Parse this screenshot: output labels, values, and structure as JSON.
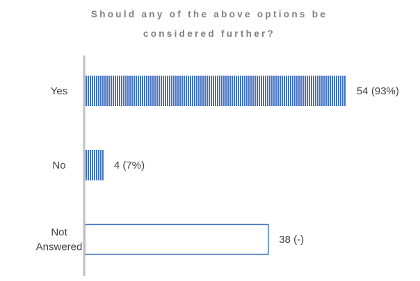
{
  "chart_data": {
    "type": "bar",
    "orientation": "horizontal",
    "title_lines": [
      "Should any of the above options be",
      "considered further?"
    ],
    "categories": [
      {
        "label_lines": [
          "Yes"
        ]
      },
      {
        "label_lines": [
          "No"
        ]
      },
      {
        "label_lines": [
          "Not",
          "Answered"
        ]
      }
    ],
    "values": [
      54,
      4,
      38
    ],
    "data_labels": [
      "54 (93%)",
      "4 (7%)",
      "38 (-)"
    ],
    "styles": [
      "striped",
      "striped",
      "outline"
    ],
    "colors": {
      "bar": "#4472c4",
      "stripe": "#ffffff",
      "axis": "#bfbfbf",
      "title": "#7f7f7f",
      "text": "#404040"
    },
    "xlim": [
      0,
      54
    ],
    "grid": false,
    "legend": "none"
  }
}
